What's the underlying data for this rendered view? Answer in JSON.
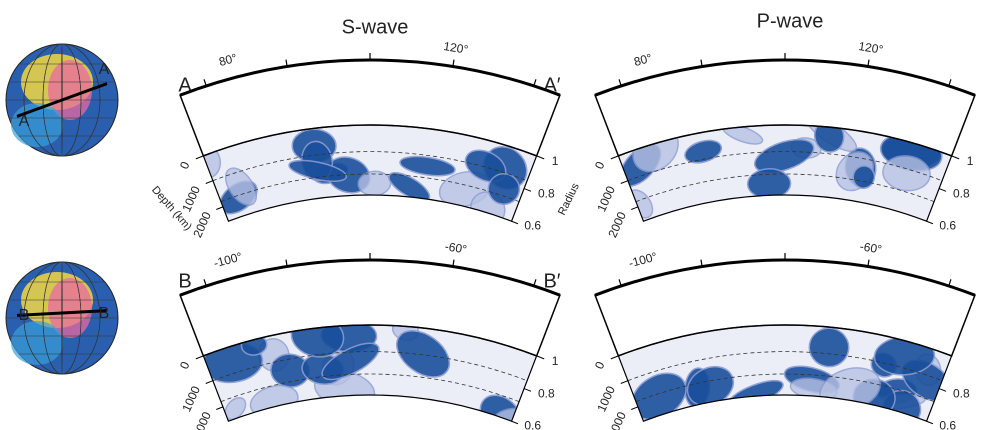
{
  "columns": [
    "S-wave",
    "P-wave"
  ],
  "rows": [
    {
      "start": "A",
      "end": "A′",
      "longitudes": [
        "80°",
        "120°"
      ],
      "globe_labels": [
        "A",
        "A"
      ]
    },
    {
      "start": "B",
      "end": "B′",
      "longitudes": [
        "-100°",
        "-60°"
      ],
      "globe_labels": [
        "B",
        "B"
      ]
    }
  ],
  "depth_axis": {
    "label": "Depth (km)",
    "ticks": [
      "0",
      "1000",
      "2000"
    ]
  },
  "radius_axis": {
    "label": "Radius",
    "ticks": [
      "1",
      "0.8",
      "0.6"
    ]
  }
}
